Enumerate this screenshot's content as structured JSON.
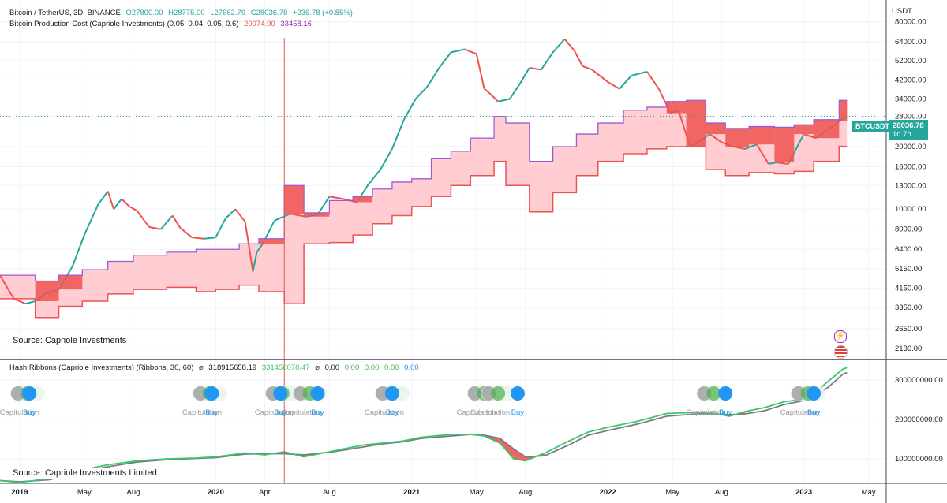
{
  "price_panel": {
    "symbol_line": "Bitcoin / TetherUS, 3D, BINANCE",
    "ohlc": {
      "o": "O27800.00",
      "h": "H28775.00",
      "l": "L27662.79",
      "c": "C28036.78",
      "chg": "+236.78 (+0.85%)"
    },
    "indicator_line": "Bitcoin Production Cost (Capriole Investments) (0.05, 0.04, 0.05, 0.6)",
    "indicator_values": [
      "20074.90",
      "33458.16"
    ],
    "source": "Source: Capriole Investments",
    "currency": "USDT",
    "last_price_label": "BTCUSDT",
    "last_price": "28036.78",
    "countdown": "1d 7h"
  },
  "ribbon_panel": {
    "title_line": "Hash Ribbons (Capriole Investments) (Ribbons, 30, 60)",
    "values": [
      "318915658.19",
      "331456078.47",
      "0.00",
      "0.00",
      "0.00",
      "0.00",
      "0.00"
    ],
    "source": "Source: Capriole Investments Limited",
    "signal_labels": [
      {
        "text": "Capitulation",
        "x": 2019.0
      },
      {
        "text": "Buy",
        "x": 2019.05
      },
      {
        "text": "Capitulation",
        "x": 2019.93
      },
      {
        "text": "Buy",
        "x": 2019.98
      },
      {
        "text": "Capitulation",
        "x": 2020.3
      },
      {
        "text": "Buy",
        "x": 2020.33
      },
      {
        "text": "Capitulation",
        "x": 2020.44
      },
      {
        "text": "Buy",
        "x": 2020.52
      },
      {
        "text": "Capitulation",
        "x": 2020.86
      },
      {
        "text": "Buy",
        "x": 2020.9
      },
      {
        "text": "Capitulation",
        "x": 2021.33
      },
      {
        "text": "Capitulation",
        "x": 2021.4
      },
      {
        "text": "Buy",
        "x": 2021.54
      },
      {
        "text": "Capitulation",
        "x": 2022.5
      },
      {
        "text": "Buy",
        "x": 2022.6
      },
      {
        "text": "Capitulation",
        "x": 2022.98
      },
      {
        "text": "Buy",
        "x": 2023.05
      }
    ]
  },
  "colors": {
    "up": "#26a69a",
    "down": "#ef5350",
    "cost_fill": "#ffcdd2",
    "cost_line": "#ef5350",
    "electric_line": "#9c5bd6",
    "ribbon_fast": "#3cc56b",
    "ribbon_slow": "#787b86",
    "buy": "#2196f3",
    "cap_grey": "#9e9e9e",
    "cap_green": "#4caf50",
    "cap_bright": "#00e676"
  },
  "chart_data": [
    {
      "type": "line",
      "title": "Bitcoin / TetherUS, 3D, BINANCE",
      "x_ticks": [
        "2019",
        "May",
        "Aug",
        "2020",
        "Apr",
        "Aug",
        "2021",
        "May",
        "Aug",
        "2022",
        "May",
        "Aug",
        "2023",
        "May"
      ],
      "x_tick_values": [
        2019.0,
        2019.33,
        2019.58,
        2020.0,
        2020.25,
        2020.58,
        2021.0,
        2021.33,
        2021.58,
        2022.0,
        2022.33,
        2022.58,
        2023.0,
        2023.33
      ],
      "y_scale": "log",
      "y_ticks": [
        "80000.00",
        "64000.00",
        "52000.00",
        "42000.00",
        "34000.00",
        "28000.00",
        "20000.00",
        "16000.00",
        "13000.00",
        "10000.00",
        "8000.00",
        "6400.00",
        "5150.00",
        "4150.00",
        "3350.00",
        "2650.00",
        "2130.00"
      ],
      "ylim": [
        1900,
        95000
      ],
      "series": [
        {
          "name": "BTCUSDT",
          "x": [
            2018.9,
            2018.97,
            2019.03,
            2019.08,
            2019.13,
            2019.2,
            2019.27,
            2019.33,
            2019.4,
            2019.45,
            2019.48,
            2019.52,
            2019.56,
            2019.6,
            2019.66,
            2019.72,
            2019.78,
            2019.82,
            2019.88,
            2019.94,
            2020.0,
            2020.05,
            2020.1,
            2020.15,
            2020.19,
            2020.21,
            2020.24,
            2020.3,
            2020.38,
            2020.46,
            2020.52,
            2020.58,
            2020.65,
            2020.72,
            2020.78,
            2020.84,
            2020.9,
            2020.96,
            2021.02,
            2021.08,
            2021.14,
            2021.2,
            2021.27,
            2021.33,
            2021.37,
            2021.4,
            2021.44,
            2021.5,
            2021.55,
            2021.6,
            2021.66,
            2021.72,
            2021.78,
            2021.83,
            2021.87,
            2021.92,
            2022.0,
            2022.06,
            2022.12,
            2022.2,
            2022.26,
            2022.32,
            2022.36,
            2022.42,
            2022.46,
            2022.52,
            2022.58,
            2022.64,
            2022.7,
            2022.76,
            2022.82,
            2022.86,
            2022.92,
            2023.0,
            2023.06,
            2023.12,
            2023.18,
            2023.22
          ],
          "y": [
            4800,
            3700,
            3500,
            3600,
            3900,
            4100,
            5300,
            7500,
            10500,
            12200,
            10000,
            11200,
            10300,
            9800,
            8200,
            8000,
            9300,
            8100,
            7300,
            7200,
            7300,
            9000,
            10000,
            8700,
            5000,
            6200,
            6800,
            8800,
            9500,
            9200,
            9400,
            11500,
            11200,
            10800,
            13200,
            15500,
            19500,
            27000,
            34000,
            39000,
            48000,
            57000,
            59000,
            56000,
            38000,
            36000,
            33000,
            34000,
            40000,
            48000,
            47000,
            57000,
            66000,
            58000,
            49000,
            47000,
            41000,
            38000,
            44000,
            46000,
            38000,
            29000,
            30000,
            20000,
            21000,
            23000,
            21000,
            20000,
            19500,
            20500,
            16500,
            16800,
            16500,
            23000,
            22000,
            24000,
            26500,
            28036.78
          ]
        },
        {
          "name": "Production cost (upper)",
          "x": [
            2018.9,
            2019.08,
            2019.2,
            2019.32,
            2019.45,
            2019.58,
            2019.75,
            2019.9,
            2020.0,
            2020.12,
            2020.22,
            2020.35,
            2020.45,
            2020.58,
            2020.7,
            2020.8,
            2020.9,
            2021.0,
            2021.1,
            2021.2,
            2021.3,
            2021.42,
            2021.48,
            2021.6,
            2021.72,
            2021.84,
            2021.95,
            2022.08,
            2022.2,
            2022.3,
            2022.4,
            2022.5,
            2022.6,
            2022.72,
            2022.85,
            2022.95,
            2023.05,
            2023.18,
            2023.22
          ],
          "y": [
            4800,
            4500,
            4800,
            5100,
            5600,
            6000,
            6200,
            6400,
            6400,
            6800,
            7200,
            13000,
            9600,
            11000,
            11500,
            12500,
            13500,
            14000,
            17500,
            19000,
            22000,
            28000,
            26000,
            17000,
            20000,
            23000,
            26000,
            30000,
            31000,
            33000,
            33458.16,
            26000,
            24500,
            25000,
            24800,
            25500,
            27000,
            33458.16,
            33458.16
          ]
        },
        {
          "name": "Production cost (lower)",
          "x": [
            2018.9,
            2019.08,
            2019.2,
            2019.32,
            2019.45,
            2019.58,
            2019.75,
            2019.9,
            2020.0,
            2020.12,
            2020.22,
            2020.35,
            2020.45,
            2020.58,
            2020.7,
            2020.8,
            2020.9,
            2021.0,
            2021.1,
            2021.2,
            2021.3,
            2021.42,
            2021.48,
            2021.6,
            2021.72,
            2021.84,
            2021.95,
            2022.08,
            2022.2,
            2022.3,
            2022.4,
            2022.5,
            2022.6,
            2022.72,
            2022.85,
            2022.95,
            2023.05,
            2023.18,
            2023.22
          ],
          "y": [
            3700,
            3000,
            3400,
            3600,
            3900,
            4100,
            4200,
            4000,
            4100,
            4300,
            4000,
            3500,
            6800,
            6900,
            7500,
            8500,
            9300,
            10300,
            11500,
            13000,
            14500,
            17000,
            13000,
            9700,
            12000,
            14500,
            17000,
            18500,
            19500,
            20000,
            20074.9,
            15500,
            14500,
            15000,
            14800,
            15200,
            17000,
            20074.9,
            20074.9
          ]
        }
      ]
    },
    {
      "type": "line",
      "title": "Hash Ribbons (Capriole Investments) (Ribbons, 30, 60)",
      "y_ticks": [
        "300000000.00",
        "200000000.00",
        "100000000.00"
      ],
      "ylim": [
        40000000,
        350000000
      ],
      "series": [
        {
          "name": "Fast",
          "x": [
            2018.9,
            2019.0,
            2019.15,
            2019.3,
            2019.45,
            2019.6,
            2019.75,
            2019.9,
            2020.0,
            2020.15,
            2020.25,
            2020.35,
            2020.45,
            2020.6,
            2020.75,
            2020.85,
            2020.95,
            2021.05,
            2021.2,
            2021.3,
            2021.37,
            2021.45,
            2021.52,
            2021.58,
            2021.68,
            2021.8,
            2021.9,
            2022.0,
            2022.15,
            2022.3,
            2022.45,
            2022.55,
            2022.62,
            2022.7,
            2022.8,
            2022.9,
            2022.98,
            2023.05,
            2023.12,
            2023.2,
            2023.22
          ],
          "y": [
            45000000,
            40000000,
            50000000,
            70000000,
            85000000,
            95000000,
            100000000,
            102000000,
            105000000,
            115000000,
            110000000,
            118000000,
            105000000,
            120000000,
            135000000,
            140000000,
            145000000,
            155000000,
            162000000,
            162000000,
            158000000,
            140000000,
            100000000,
            95000000,
            115000000,
            145000000,
            168000000,
            180000000,
            195000000,
            215000000,
            218000000,
            215000000,
            208000000,
            220000000,
            230000000,
            245000000,
            250000000,
            265000000,
            295000000,
            328000000,
            331456078.47
          ]
        },
        {
          "name": "Slow",
          "x": [
            2018.9,
            2019.0,
            2019.15,
            2019.3,
            2019.45,
            2019.6,
            2019.75,
            2019.9,
            2020.0,
            2020.15,
            2020.25,
            2020.35,
            2020.45,
            2020.6,
            2020.75,
            2020.85,
            2020.95,
            2021.05,
            2021.2,
            2021.3,
            2021.37,
            2021.45,
            2021.52,
            2021.58,
            2021.68,
            2021.8,
            2021.9,
            2022.0,
            2022.15,
            2022.3,
            2022.45,
            2022.55,
            2022.62,
            2022.7,
            2022.8,
            2022.9,
            2022.98,
            2023.05,
            2023.12,
            2023.2,
            2023.22
          ],
          "y": [
            45000000,
            42000000,
            47000000,
            65000000,
            80000000,
            92000000,
            98000000,
            101000000,
            103000000,
            112000000,
            113000000,
            113000000,
            110000000,
            118000000,
            130000000,
            138000000,
            143000000,
            152000000,
            158000000,
            162000000,
            160000000,
            152000000,
            125000000,
            105000000,
            108000000,
            135000000,
            160000000,
            172000000,
            188000000,
            208000000,
            214000000,
            214000000,
            212000000,
            214000000,
            222000000,
            238000000,
            246000000,
            255000000,
            280000000,
            315000000,
            318915658.19
          ]
        }
      ]
    }
  ]
}
